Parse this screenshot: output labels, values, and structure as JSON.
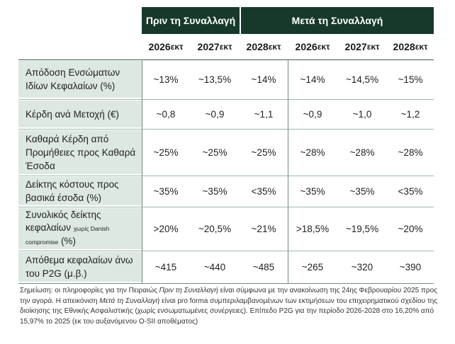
{
  "header": {
    "before": "Πριν τη Συναλλαγή",
    "after": "Μετά τη Συναλλαγή"
  },
  "years": [
    {
      "year": "2026",
      "suffix": "εκτ"
    },
    {
      "year": "2027",
      "suffix": "εκτ"
    },
    {
      "year": "2028",
      "suffix": "εκτ"
    },
    {
      "year": "2026",
      "suffix": "εκτ"
    },
    {
      "year": "2027",
      "suffix": "εκτ"
    },
    {
      "year": "2028",
      "suffix": "εκτ"
    }
  ],
  "rows": [
    {
      "label_lines": [
        "Απόδοση Ενσώματων",
        "Ιδίων Κεφαλαίων (%)"
      ],
      "values": [
        "~13%",
        "~13,5%",
        "~14%",
        "~14%",
        "~14,5%",
        "~15%"
      ]
    },
    {
      "label_lines": [
        "Κέρδη ανά Μετοχή (€)"
      ],
      "values": [
        "~0,8",
        "~0,9",
        "~1,1",
        "~0,9",
        "~1,0",
        "~1,2"
      ]
    },
    {
      "label_lines": [
        "Καθαρά Κέρδη από",
        "Προμήθειες προς Καθαρά",
        "Έσοδα"
      ],
      "values": [
        "~25%",
        "~25%",
        "~25%",
        "~28%",
        "~28%",
        "~28%"
      ]
    },
    {
      "label_lines": [
        "Δείκτης κόστους προς",
        "βασικά έσοδα (%)"
      ],
      "values": [
        "~35%",
        "~35%",
        "<35%",
        "~35%",
        "~35%",
        "<35%"
      ]
    },
    {
      "label_lines": [
        "Συνολικός δείκτης"
      ],
      "label_extra": {
        "main": "κεφαλαίων",
        "small": "χωρίς Danish",
        "small2": "compromise",
        "tail": "(%)"
      },
      "values": [
        ">20%",
        "~20,5%",
        "~21%",
        ">18,5%",
        "~19,5%",
        "~20%"
      ]
    },
    {
      "label_lines": [
        "Απόθεμα κεφαλαίων άνω",
        "του P2G (μ.β.)"
      ],
      "values": [
        "~415",
        "~440",
        "~485",
        "~265",
        "~320",
        "~390"
      ]
    }
  ],
  "note": {
    "prefix": "Σημείωση: οι πληροφορίες για την Πειραιώς ",
    "italic1": "Πριν τη Συναλλαγή",
    "part2": " είναι σύμφωνα με την ανακοίνωση της 24ης Φεβρουαρίου 2025 προς την αγορά. Η απεικόνιση ",
    "italic2": "Μετά τη Συναλλαγή",
    "part3": " είναι pro forma συμπεριλαμβανομένων των εκτιμήσεων του επιχειρηματικού σχεδίου της διοίκησης της Εθνικής Ασφαλιστικής (χωρίς ενσωματωμένες συνέργειες). Επίπεδο P2G για την περίοδο 2026-2028 στο 16,20% από 15,97% το 2025 (εκ του αυξανόμενου O-SII αποθέματος)"
  }
}
